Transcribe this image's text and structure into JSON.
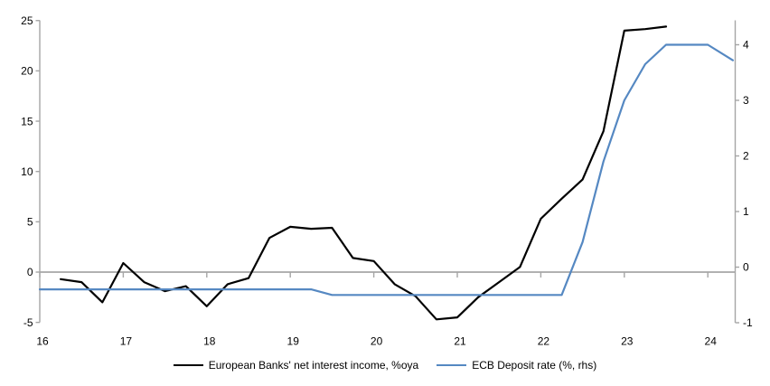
{
  "chart_data": {
    "type": "line",
    "title": "",
    "x_axis": {
      "tick_labels": [
        "16",
        "17",
        "18",
        "19",
        "20",
        "21",
        "22",
        "23",
        "24"
      ],
      "tick_years": [
        16,
        17,
        18,
        19,
        20,
        21,
        22,
        23,
        24
      ],
      "range": [
        16,
        24.33
      ],
      "unit": "year (quarterly data)"
    },
    "left_axis": {
      "tick_labels": [
        "25",
        "20",
        "15",
        "10",
        "5",
        "0",
        "-5"
      ],
      "ticks": [
        25,
        20,
        15,
        10,
        5,
        0,
        -5
      ],
      "range": [
        -5,
        25
      ]
    },
    "right_axis": {
      "tick_labels": [
        "4",
        "3",
        "2",
        "1",
        "0",
        "-1"
      ],
      "ticks": [
        4,
        3,
        2,
        1,
        0,
        -1
      ],
      "range": [
        -1,
        4
      ]
    },
    "grid": "zero-line-only",
    "legend_position": "bottom-center",
    "colors": {
      "axis": "#A6A6A6",
      "text": "#000000"
    },
    "series": [
      {
        "name": "European Banks' net interest income, %oya",
        "axis": "left",
        "color": "#000000",
        "points": [
          [
            16.25,
            -0.7
          ],
          [
            16.5,
            -1.0
          ],
          [
            16.75,
            -3.0
          ],
          [
            17.0,
            0.9
          ],
          [
            17.25,
            -1.0
          ],
          [
            17.5,
            -1.9
          ],
          [
            17.75,
            -1.4
          ],
          [
            18.0,
            -3.4
          ],
          [
            18.25,
            -1.2
          ],
          [
            18.5,
            -0.6
          ],
          [
            18.75,
            3.4
          ],
          [
            19.0,
            4.5
          ],
          [
            19.25,
            4.3
          ],
          [
            19.5,
            4.4
          ],
          [
            19.75,
            1.4
          ],
          [
            20.0,
            1.1
          ],
          [
            20.25,
            -1.2
          ],
          [
            20.5,
            -2.4
          ],
          [
            20.75,
            -4.7
          ],
          [
            21.0,
            -4.5
          ],
          [
            21.25,
            -2.5
          ],
          [
            21.5,
            -1.0
          ],
          [
            21.75,
            0.5
          ],
          [
            22.0,
            5.3
          ],
          [
            22.25,
            7.3
          ],
          [
            22.5,
            9.2
          ],
          [
            22.75,
            14.0
          ],
          [
            23.0,
            24.0
          ],
          [
            23.25,
            24.15
          ],
          [
            23.5,
            24.4
          ]
        ]
      },
      {
        "name": "ECB Deposit rate (%, rhs)",
        "axis": "right",
        "color": "#5588C2",
        "points": [
          [
            16.0,
            -0.4
          ],
          [
            19.25,
            -0.4
          ],
          [
            19.5,
            -0.5
          ],
          [
            22.25,
            -0.5
          ],
          [
            22.5,
            0.45
          ],
          [
            22.75,
            1.9
          ],
          [
            23.0,
            3.0
          ],
          [
            23.25,
            3.65
          ],
          [
            23.5,
            4.0
          ],
          [
            24.0,
            4.0
          ],
          [
            24.3,
            3.72
          ]
        ]
      }
    ]
  }
}
